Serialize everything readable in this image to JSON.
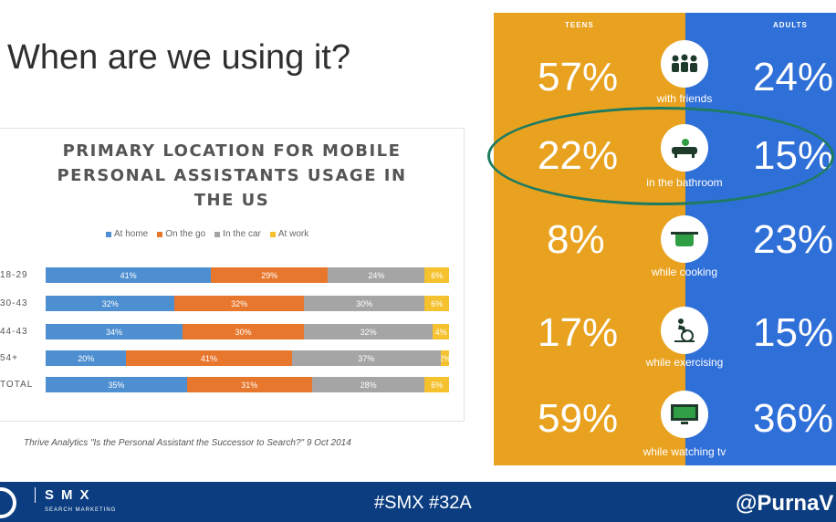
{
  "slide": {
    "title": "When are we using it?"
  },
  "chart_data": {
    "type": "bar",
    "title": "PRIMARY LOCATION FOR MOBILE PERSONAL ASSISTANTS USAGE IN THE US",
    "categories": [
      "18-29",
      "30-43",
      "44-43",
      "54+",
      "TOTAL"
    ],
    "series": [
      {
        "name": "At home",
        "color": "#4e8fd1",
        "values": [
          41,
          32,
          34,
          20,
          35
        ],
        "labels": [
          "41%",
          "32%",
          "34%",
          "20%",
          "35%"
        ]
      },
      {
        "name": "On the go",
        "color": "#e8772e",
        "values": [
          29,
          32,
          30,
          41,
          31
        ],
        "labels": [
          "29%",
          "32%",
          "30%",
          "41%",
          "31%"
        ]
      },
      {
        "name": "In the car",
        "color": "#a5a5a5",
        "values": [
          24,
          30,
          32,
          37,
          28
        ],
        "labels": [
          "24%",
          "30%",
          "32%",
          "37%",
          "28%"
        ]
      },
      {
        "name": "At work",
        "color": "#f5c12e",
        "values": [
          6,
          6,
          4,
          2,
          6
        ],
        "labels": [
          "6%",
          "6%",
          "4%",
          "2%",
          "6%"
        ]
      }
    ],
    "stacked": true,
    "orientation": "horizontal",
    "legend": "top"
  },
  "source": "Thrive Analytics \"Is the Personal Assistant the Successor to Search?\" 9 Oct 2014",
  "comparison": {
    "teens_label": "TEENS",
    "adults_label": "ADULTS",
    "teens_color": "#e9a21f",
    "adults_color": "#2f6fd8",
    "rows": [
      {
        "activity": "with friends",
        "teens": "57%",
        "adults": "24%",
        "icon": "people-icon"
      },
      {
        "activity": "in the bathroom",
        "teens": "22%",
        "adults": "15%",
        "icon": "bathtub-icon"
      },
      {
        "activity": "while cooking",
        "teens": "8%",
        "adults": "23%",
        "icon": "pot-icon"
      },
      {
        "activity": "while exercising",
        "teens": "17%",
        "adults": "15%",
        "icon": "exercise-bike-icon"
      },
      {
        "activity": "while watching tv",
        "teens": "59%",
        "adults": "36%",
        "icon": "tv-icon"
      }
    ]
  },
  "footer": {
    "brand": "SMX",
    "brand_sub": "SEARCH MARKETING",
    "hashtags": "#SMX #32A",
    "handle": "@PurnaV"
  }
}
